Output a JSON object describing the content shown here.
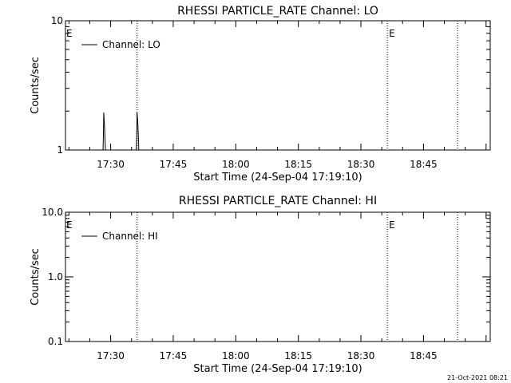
{
  "footer_timestamp": "21-Oct-2021 08:21",
  "chart_data": [
    {
      "type": "line",
      "title": "RHESSI PARTICLE_RATE Channel: LO",
      "xlabel": "Start Time (24-Sep-04 17:19:10)",
      "ylabel": "Counts/sec",
      "yscale": "log",
      "ylim": [
        1,
        10
      ],
      "xlim": [
        "17:19:10",
        "19:01:00"
      ],
      "xtick_labels": [
        "17:30",
        "17:45",
        "18:00",
        "18:15",
        "18:30",
        "18:45"
      ],
      "ytick_labels": [
        "1",
        "10"
      ],
      "legend": {
        "entries": [
          "Channel: LO"
        ],
        "placement": "top-left"
      },
      "grid": false,
      "vertical_markers": [
        {
          "time": "17:36:20",
          "label": ""
        },
        {
          "time": "18:36:20",
          "label": "E"
        },
        {
          "time": "18:53:10",
          "label": ""
        }
      ],
      "corner_marker": "E",
      "series": [
        {
          "name": "Channel: LO",
          "points": [
            {
              "x": "17:28:10",
              "y": 1
            },
            {
              "x": "17:28:15",
              "y": 1.25
            },
            {
              "x": "17:28:20",
              "y": 1.95
            },
            {
              "x": "17:28:30",
              "y": 1.6
            },
            {
              "x": "17:28:40",
              "y": 1.15
            },
            {
              "x": "17:28:45",
              "y": 1
            },
            {
              "x": "17:36:10",
              "y": 1
            },
            {
              "x": "17:36:15",
              "y": 1.3
            },
            {
              "x": "17:36:20",
              "y": 1.95
            },
            {
              "x": "17:36:30",
              "y": 1.65
            },
            {
              "x": "17:36:40",
              "y": 1.2
            },
            {
              "x": "17:36:45",
              "y": 1
            }
          ]
        }
      ]
    },
    {
      "type": "line",
      "title": "RHESSI PARTICLE_RATE Channel: HI",
      "xlabel": "Start Time (24-Sep-04 17:19:10)",
      "ylabel": "Counts/sec",
      "yscale": "log",
      "ylim": [
        0.1,
        10
      ],
      "xlim": [
        "17:19:10",
        "19:01:00"
      ],
      "xtick_labels": [
        "17:30",
        "17:45",
        "18:00",
        "18:15",
        "18:30",
        "18:45"
      ],
      "ytick_labels": [
        "0.1",
        "1.0",
        "10.0"
      ],
      "legend": {
        "entries": [
          "Channel: HI"
        ],
        "placement": "top-left"
      },
      "grid": false,
      "vertical_markers": [
        {
          "time": "17:36:20",
          "label": ""
        },
        {
          "time": "18:36:20",
          "label": "E"
        },
        {
          "time": "18:53:10",
          "label": ""
        }
      ],
      "corner_marker": "E",
      "series": [
        {
          "name": "Channel: HI",
          "points": []
        }
      ]
    }
  ]
}
